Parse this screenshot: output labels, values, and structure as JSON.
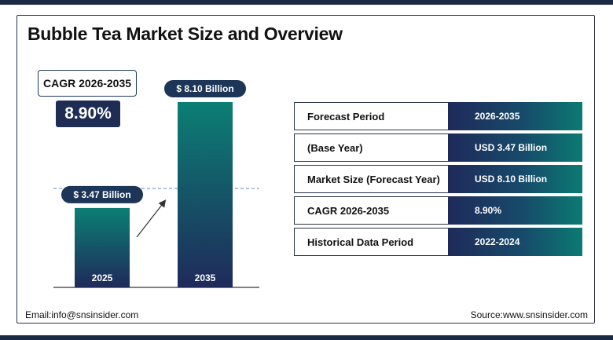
{
  "title": "Bubble Tea Market Size and Overview",
  "cagr_label": "CAGR 2026-2035",
  "cagr_value": "8.90%",
  "chart_data": {
    "type": "bar",
    "categories": [
      "2025",
      "2035"
    ],
    "values": [
      3.47,
      8.1
    ],
    "value_labels": [
      "$ 3.47 Billion",
      "$ 8.10 Billion"
    ],
    "ylabel": "",
    "xlabel": "",
    "ylim": [
      0,
      8.1
    ]
  },
  "table": {
    "rows": [
      {
        "label": "Forecast Period",
        "value": "2026-2035"
      },
      {
        "label": "(Base Year)",
        "value": "USD 3.47 Billion"
      },
      {
        "label": "Market Size (Forecast Year)",
        "value": "USD 8.10 Billion"
      },
      {
        "label": "CAGR 2026-2035",
        "value": "8.90%"
      },
      {
        "label": "Historical Data Period",
        "value": "2022-2024"
      }
    ]
  },
  "footer": {
    "email": "Email:info@snsinsider.com",
    "source": "Source:www.snsinsider.com"
  },
  "colors": {
    "bar_top": "#0b7a72",
    "bar_bottom": "#1f2a5a",
    "navy": "#1f2d55",
    "label_pill": "#1d3557"
  }
}
